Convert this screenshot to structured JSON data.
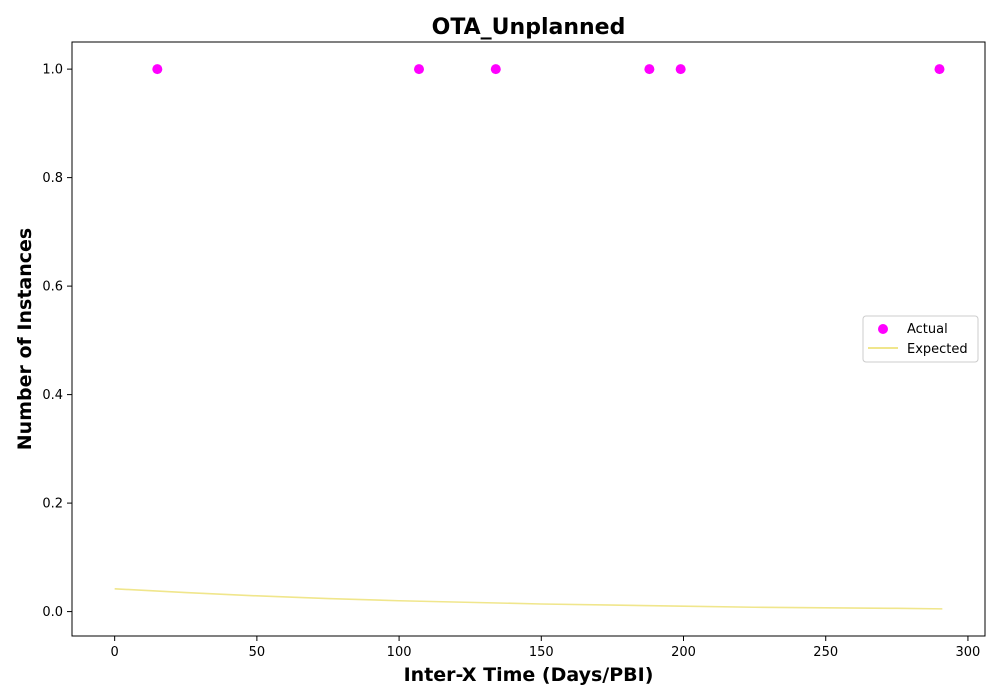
{
  "chart_data": {
    "type": "scatter",
    "title": "OTA_Unplanned",
    "xlabel": "Inter-X Time (Days/PBI)",
    "ylabel": "Number of Instances",
    "xlim": [
      -15,
      306
    ],
    "ylim": [
      -0.045,
      1.05
    ],
    "xticks": [
      0,
      50,
      100,
      150,
      200,
      250,
      300
    ],
    "yticks": [
      0.0,
      0.2,
      0.4,
      0.6,
      0.8,
      1.0
    ],
    "xtick_labels": [
      "0",
      "50",
      "100",
      "150",
      "200",
      "250",
      "300"
    ],
    "ytick_labels": [
      "0.0",
      "0.2",
      "0.4",
      "0.6",
      "0.8",
      "1.0"
    ],
    "grid": false,
    "legend_position": "center-right",
    "series": [
      {
        "name": "Actual",
        "kind": "scatter",
        "color": "#ff00ff",
        "x": [
          15,
          107,
          134,
          188,
          199,
          290
        ],
        "y": [
          1,
          1,
          1,
          1,
          1,
          1
        ]
      },
      {
        "name": "Expected",
        "kind": "line",
        "color": "#f0e68c",
        "x": [
          0,
          25,
          50,
          75,
          100,
          125,
          150,
          175,
          200,
          225,
          250,
          275,
          291
        ],
        "y": [
          0.042,
          0.035,
          0.029,
          0.024,
          0.02,
          0.017,
          0.014,
          0.012,
          0.01,
          0.008,
          0.007,
          0.006,
          0.005
        ]
      }
    ]
  }
}
